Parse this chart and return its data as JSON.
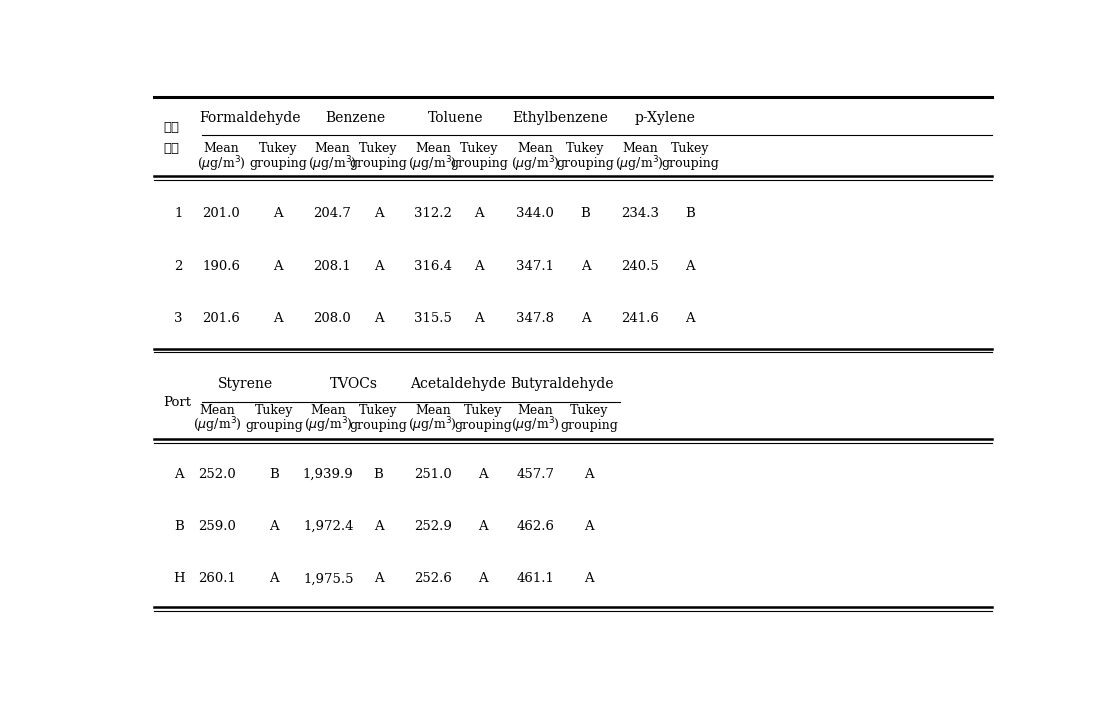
{
  "table1": {
    "row_label_line1": "반복",
    "row_label_line2": "측정",
    "compounds": [
      "Formaldehyde",
      "Benzene",
      "Toluene",
      "Ethylbenzene",
      "p-Xylene"
    ],
    "rows": [
      {
        "id": "1",
        "values": [
          "201.0",
          "A",
          "204.7",
          "A",
          "312.2",
          "A",
          "344.0",
          "B",
          "234.3",
          "B"
        ]
      },
      {
        "id": "2",
        "values": [
          "190.6",
          "A",
          "208.1",
          "A",
          "316.4",
          "A",
          "347.1",
          "A",
          "240.5",
          "A"
        ]
      },
      {
        "id": "3",
        "values": [
          "201.6",
          "A",
          "208.0",
          "A",
          "315.5",
          "A",
          "347.8",
          "A",
          "241.6",
          "A"
        ]
      }
    ]
  },
  "table2": {
    "row_label": "Port",
    "compounds": [
      "Styrene",
      "TVOCs",
      "Acetaldehyde",
      "Butyraldehyde"
    ],
    "rows": [
      {
        "id": "A",
        "values": [
          "252.0",
          "B",
          "1,939.9",
          "B",
          "251.0",
          "A",
          "457.7",
          "A"
        ]
      },
      {
        "id": "B",
        "values": [
          "259.0",
          "A",
          "1,972.4",
          "A",
          "252.9",
          "A",
          "462.6",
          "A"
        ]
      },
      {
        "id": "H",
        "values": [
          "260.1",
          "A",
          "1,975.5",
          "A",
          "252.6",
          "A",
          "461.1",
          "A"
        ]
      }
    ]
  },
  "bg_color": "#ffffff",
  "text_color": "#000000",
  "line_color": "#000000"
}
